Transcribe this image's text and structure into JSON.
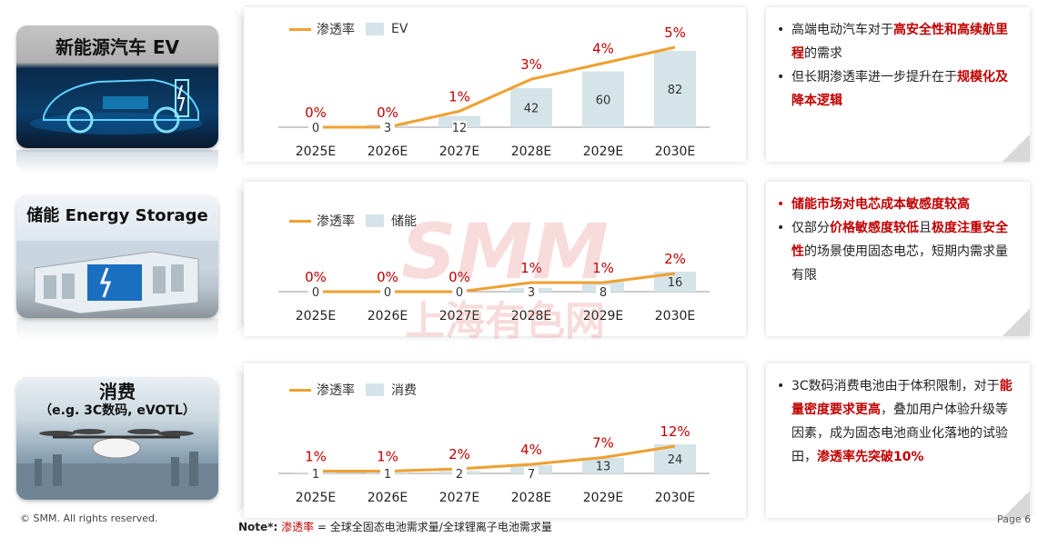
{
  "rows": [
    {
      "title": "新能源汽车 EV",
      "subtitle": "",
      "legend_line": "渗透率",
      "legend_bar": "EV",
      "bullets": [
        {
          "parts": [
            {
              "t": "高端电动汽车对于",
              "h": false
            },
            {
              "t": "高安全性和高续航里程",
              "h": true
            },
            {
              "t": "的需求",
              "h": false
            }
          ]
        },
        {
          "parts": [
            {
              "t": "但长期渗透率进一步提升在于",
              "h": false
            },
            {
              "t": "规模化及降本逻辑",
              "h": true
            }
          ]
        }
      ]
    },
    {
      "title": "储能 Energy Storage",
      "subtitle": "",
      "legend_line": "渗透率",
      "legend_bar": "储能",
      "bullets": [
        {
          "parts": [
            {
              "t": "储能市场对电芯成本敏感度较高",
              "h": true
            }
          ]
        },
        {
          "parts": [
            {
              "t": "仅部分",
              "h": false
            },
            {
              "t": "价格敏感度较低",
              "h": true
            },
            {
              "t": "且",
              "h": false
            },
            {
              "t": "极度注重安全性",
              "h": true
            },
            {
              "t": "的场景使用固态电芯，短期内需求量有限",
              "h": false
            }
          ]
        }
      ]
    },
    {
      "title": "消费",
      "subtitle": "（e.g. 3C数码, eVOTL）",
      "legend_line": "渗透率",
      "legend_bar": "消费",
      "bullets": [
        {
          "parts": [
            {
              "t": "3C数码消费电池由于体积限制，对于",
              "h": false
            },
            {
              "t": "能量密度要求更高",
              "h": true
            },
            {
              "t": "，叠加用户体验升级等因素，成为固态电池商业化落地的试验田，",
              "h": false
            },
            {
              "t": "渗透率先突破10%",
              "h": true
            }
          ]
        }
      ]
    }
  ],
  "chart_data": [
    {
      "type": "bar",
      "categories": [
        "2025E",
        "2026E",
        "2027E",
        "2028E",
        "2029E",
        "2030E"
      ],
      "series": [
        {
          "name": "EV",
          "kind": "bar",
          "values": [
            0,
            3,
            12,
            42,
            60,
            82
          ]
        },
        {
          "name": "渗透率",
          "kind": "line",
          "values": [
            0,
            0,
            1,
            3,
            4,
            5
          ],
          "labels": [
            "0%",
            "0%",
            "1%",
            "3%",
            "4%",
            "5%"
          ]
        }
      ]
    },
    {
      "type": "bar",
      "categories": [
        "2025E",
        "2026E",
        "2027E",
        "2028E",
        "2029E",
        "2030E"
      ],
      "series": [
        {
          "name": "储能",
          "kind": "bar",
          "values": [
            0,
            0,
            0,
            3,
            8,
            16
          ]
        },
        {
          "name": "渗透率",
          "kind": "line",
          "values": [
            0,
            0,
            0,
            1,
            1,
            2
          ],
          "labels": [
            "0%",
            "0%",
            "0%",
            "1%",
            "1%",
            "2%"
          ]
        }
      ]
    },
    {
      "type": "bar",
      "categories": [
        "2025E",
        "2026E",
        "2027E",
        "2028E",
        "2029E",
        "2030E"
      ],
      "series": [
        {
          "name": "消费",
          "kind": "bar",
          "values": [
            1,
            1,
            2,
            7,
            13,
            24
          ]
        },
        {
          "name": "渗透率",
          "kind": "line",
          "values": [
            1,
            1,
            2,
            4,
            7,
            12
          ],
          "labels": [
            "1%",
            "1%",
            "2%",
            "4%",
            "7%",
            "12%"
          ]
        }
      ]
    }
  ],
  "footer": {
    "copyright": "© SMM. All rights reserved.",
    "note_label": "Note*:",
    "note_term": "渗透率",
    "note_text": " = 全球全固态电池需求量/全球锂离子电池需求量",
    "page": "Page 6"
  },
  "watermark": {
    "line1": "SMM",
    "line2": "上海有色网"
  },
  "colors": {
    "bar": "#d5e4e8",
    "line": "#f0a030",
    "label_red": "#c00000",
    "bar_text": "#333333"
  }
}
